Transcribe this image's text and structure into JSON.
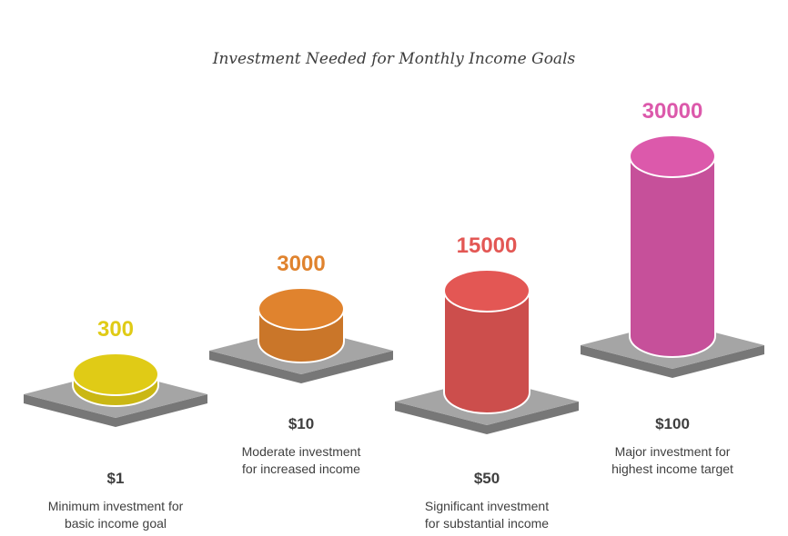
{
  "chart_data": {
    "type": "bar",
    "title": "Investment Needed for Monthly Income Goals",
    "categories": [
      "$1",
      "$10",
      "$50",
      "$100"
    ],
    "values": [
      300,
      3000,
      15000,
      30000
    ],
    "value_labels": [
      "300",
      "3000",
      "15000",
      "30000"
    ],
    "descriptions": [
      [
        "Minimum investment for",
        "basic income goal"
      ],
      [
        "Moderate investment",
        "for increased income"
      ],
      [
        "Significant investment",
        "for substantial income"
      ],
      [
        "Major investment for",
        "highest income target"
      ]
    ],
    "colors": [
      "#e0cb16",
      "#e0832e",
      "#e35754",
      "#dc59ab"
    ],
    "pedestal_color": "#a5a5a5"
  }
}
